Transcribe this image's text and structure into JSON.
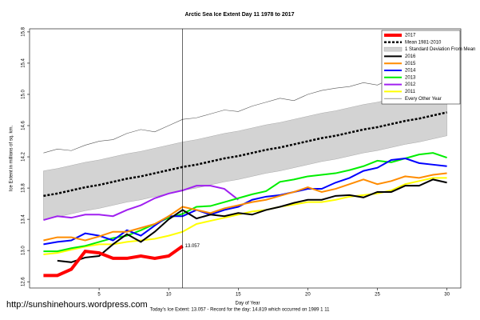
{
  "chart_data": {
    "type": "line",
    "title": "Arctic Sea Ice Extent Day 11 1978 to 2017",
    "xlabel": "Day of Year",
    "ylabel": "Ice Extent in millions of sq. km.",
    "footer": "Today's Ice Extent: 13.057  - Record for the day: 14.819 which occurred on 1989 1 11",
    "watermark": "http://sunshinehours.wordpress.com",
    "annotation": {
      "text": "13.057",
      "color": "#ff0000"
    },
    "x": [
      1,
      2,
      3,
      4,
      5,
      6,
      7,
      8,
      9,
      10,
      11,
      12,
      13,
      14,
      15,
      16,
      17,
      18,
      19,
      20,
      21,
      22,
      23,
      24,
      25,
      26,
      27,
      28,
      29,
      30
    ],
    "xlim": [
      0,
      31
    ],
    "xticks": [
      5,
      10,
      15,
      20,
      25,
      30
    ],
    "ylim": [
      12.52,
      15.84
    ],
    "yticks": [
      12.6,
      {
        "value": 13,
        "label": "13.0"
      },
      13.4,
      13.8,
      14.2,
      14.6,
      {
        "value": 15,
        "label": "15.0"
      },
      15.4,
      15.8
    ],
    "legend": "top-right",
    "band": {
      "name": "1 Standard Deviation From Mean",
      "color": "#d3d3d3",
      "upper": [
        14.02,
        14.05,
        14.09,
        14.13,
        14.16,
        14.2,
        14.24,
        14.27,
        14.31,
        14.35,
        14.39,
        14.42,
        14.46,
        14.5,
        14.53,
        14.57,
        14.61,
        14.64,
        14.68,
        14.72,
        14.76,
        14.79,
        14.83,
        14.87,
        14.9,
        14.94,
        14.98,
        15.01,
        15.05,
        15.09
      ],
      "lower": [
        13.4,
        13.43,
        13.47,
        13.51,
        13.54,
        13.58,
        13.62,
        13.65,
        13.69,
        13.73,
        13.77,
        13.8,
        13.84,
        13.88,
        13.91,
        13.95,
        13.99,
        14.02,
        14.06,
        14.1,
        14.14,
        14.17,
        14.21,
        14.25,
        14.28,
        14.32,
        14.36,
        14.39,
        14.43,
        14.47
      ]
    },
    "series": [
      {
        "name": "2017",
        "color": "#ff0000",
        "width": 4,
        "values": [
          12.68,
          12.68,
          12.76,
          12.99,
          12.97,
          12.9,
          12.9,
          12.93,
          12.9,
          12.93,
          13.057,
          null,
          null,
          null,
          null,
          null,
          null,
          null,
          null,
          null,
          null,
          null,
          null,
          null,
          null,
          null,
          null,
          null,
          null,
          null
        ]
      },
      {
        "name": "Mean 1981-2010",
        "color": "#000000",
        "width": 2.5,
        "dash": true,
        "values": [
          13.7,
          13.73,
          13.77,
          13.81,
          13.84,
          13.88,
          13.92,
          13.95,
          13.99,
          14.03,
          14.07,
          14.1,
          14.14,
          14.18,
          14.21,
          14.25,
          14.29,
          14.32,
          14.36,
          14.4,
          14.44,
          14.47,
          14.51,
          14.55,
          14.58,
          14.62,
          14.66,
          14.69,
          14.73,
          14.77
        ]
      },
      {
        "name": "2016",
        "color": "#000000",
        "width": 2,
        "values": [
          null,
          12.87,
          12.85,
          12.91,
          12.93,
          13.08,
          13.21,
          13.11,
          13.24,
          13.4,
          13.52,
          13.41,
          13.46,
          13.44,
          13.48,
          13.46,
          13.52,
          13.56,
          13.61,
          13.65,
          13.65,
          13.7,
          13.71,
          13.68,
          13.75,
          13.75,
          13.83,
          13.83,
          13.91,
          13.87
        ]
      },
      {
        "name": "2015",
        "color": "#ff8c00",
        "width": 2,
        "values": [
          13.13,
          13.17,
          13.17,
          13.13,
          13.18,
          13.24,
          13.24,
          13.29,
          13.34,
          13.44,
          13.56,
          13.52,
          13.48,
          13.54,
          13.58,
          13.62,
          13.65,
          13.7,
          13.75,
          13.81,
          13.75,
          13.79,
          13.85,
          13.91,
          13.85,
          13.89,
          13.95,
          13.93,
          13.97,
          13.99
        ]
      },
      {
        "name": "2014",
        "color": "#0000ff",
        "width": 2,
        "values": [
          13.08,
          13.11,
          13.13,
          13.22,
          13.19,
          13.13,
          13.26,
          13.19,
          13.32,
          13.44,
          13.44,
          13.52,
          13.46,
          13.52,
          13.56,
          13.65,
          13.69,
          13.71,
          13.75,
          13.79,
          13.79,
          13.87,
          13.93,
          14.02,
          14.06,
          14.16,
          14.18,
          14.12,
          14.1,
          14.08
        ]
      },
      {
        "name": "2013",
        "color": "#00ee00",
        "width": 2,
        "values": [
          12.99,
          12.99,
          13.03,
          13.06,
          13.11,
          13.16,
          13.19,
          13.26,
          13.34,
          13.42,
          13.47,
          13.56,
          13.57,
          13.62,
          13.67,
          13.72,
          13.76,
          13.88,
          13.91,
          13.95,
          13.97,
          13.99,
          14.03,
          14.08,
          14.15,
          14.13,
          14.18,
          14.23,
          14.25,
          14.19
        ]
      },
      {
        "name": "2012",
        "color": "#a020f0",
        "width": 2,
        "values": [
          13.39,
          13.44,
          13.42,
          13.46,
          13.46,
          13.44,
          13.52,
          13.58,
          13.67,
          13.73,
          13.77,
          13.83,
          13.83,
          13.79,
          13.65,
          null,
          null,
          null,
          null,
          null,
          null,
          null,
          null,
          null,
          null,
          null,
          null,
          null,
          null,
          null
        ]
      },
      {
        "name": "2011",
        "color": "#ffff00",
        "width": 2,
        "values": [
          12.95,
          12.97,
          13.01,
          13.05,
          13.08,
          13.08,
          13.11,
          13.13,
          13.15,
          13.19,
          13.24,
          13.34,
          13.38,
          13.42,
          13.46,
          13.5,
          13.52,
          13.56,
          13.59,
          13.62,
          13.62,
          13.65,
          13.69,
          13.71,
          13.73,
          13.77,
          13.85,
          13.89,
          13.93,
          13.93
        ]
      },
      {
        "name": "Every Other Year",
        "color": "#555555",
        "width": 0.6,
        "values": [
          14.25,
          14.3,
          14.28,
          14.35,
          14.4,
          14.42,
          14.5,
          14.55,
          14.52,
          14.6,
          14.68,
          14.7,
          14.75,
          14.8,
          14.78,
          14.85,
          14.9,
          14.95,
          14.92,
          15.0,
          15.05,
          15.08,
          15.1,
          15.15,
          15.12,
          15.2,
          15.25,
          15.28,
          15.3,
          15.32
        ]
      }
    ]
  }
}
